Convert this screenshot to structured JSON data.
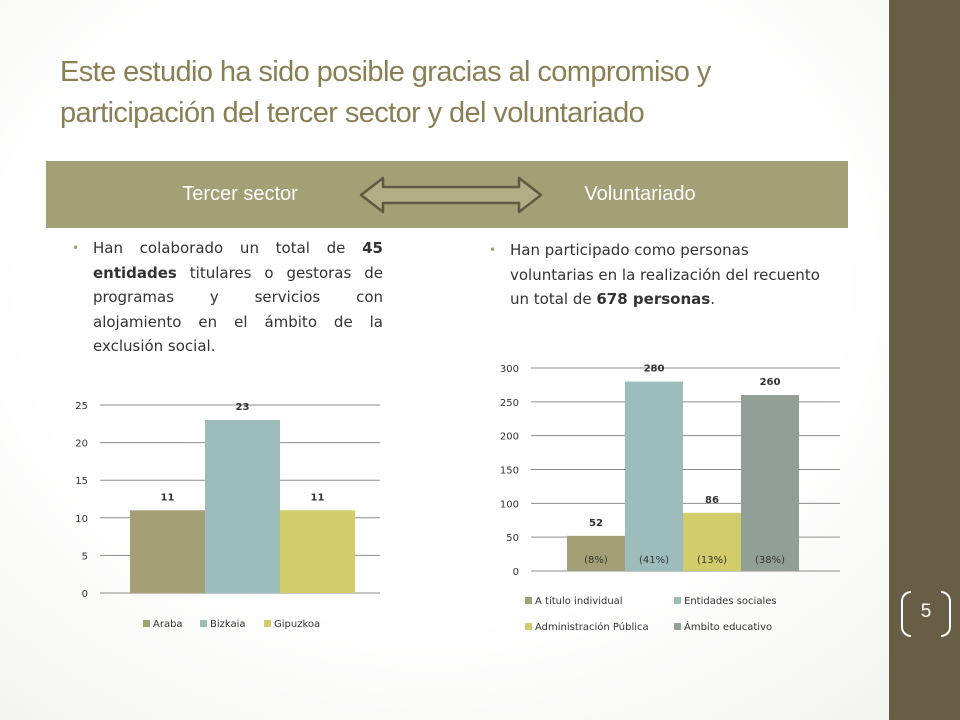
{
  "slide": {
    "title": "Este estudio ha sido posible gracias al compromiso y participación del tercer sector y del voluntariado",
    "page_number": "5"
  },
  "tabs": {
    "left": "Tercer sector",
    "right": "Voluntariado"
  },
  "bullets": {
    "left": {
      "pre": "Han colaborado un total de ",
      "bold": "45 entidades",
      "post": " titulares o gestoras de programas y servicios con alojamiento en el ámbito de la exclusión social."
    },
    "right": {
      "pre": "Han participado como personas voluntarias en la realización del recuento un total de ",
      "bold": "678 personas",
      "post": "."
    }
  },
  "colors": {
    "sidebar": "#675e45",
    "tab": "#a4a076",
    "title": "#8a7f54"
  },
  "chart_data": [
    {
      "type": "bar",
      "categories": [
        ""
      ],
      "series": [
        {
          "name": "Araba",
          "values": [
            11
          ],
          "color": "#a4a076"
        },
        {
          "name": "Bizkaia",
          "values": [
            23
          ],
          "color": "#9dbdbd"
        },
        {
          "name": "Gipuzkoa",
          "values": [
            11
          ],
          "color": "#d2cc6a"
        }
      ],
      "ylim": [
        0,
        25
      ],
      "yticks": [
        "0",
        "5",
        "10",
        "15",
        "20",
        "25"
      ],
      "data_labels": [
        "11",
        "23",
        "11"
      ],
      "grid": true,
      "legend": "bottom"
    },
    {
      "type": "bar",
      "categories": [
        ""
      ],
      "series": [
        {
          "name": "A título individual",
          "values": [
            52
          ],
          "color": "#a4a076"
        },
        {
          "name": "Entidades sociales",
          "values": [
            280
          ],
          "color": "#9dbdbd"
        },
        {
          "name": "Administración Pública",
          "values": [
            86
          ],
          "color": "#d2cc6a"
        },
        {
          "name": "Ámbito educativo",
          "values": [
            260
          ],
          "color": "#929f96"
        }
      ],
      "ylim": [
        0,
        300
      ],
      "yticks": [
        "0",
        "50",
        "100",
        "150",
        "200",
        "250",
        "300"
      ],
      "data_labels": [
        "52",
        "280",
        "86",
        "260"
      ],
      "percent_labels": [
        "(8%)",
        "(41%)",
        "(13%)",
        "(38%)"
      ],
      "grid": true,
      "legend": "bottom"
    }
  ]
}
